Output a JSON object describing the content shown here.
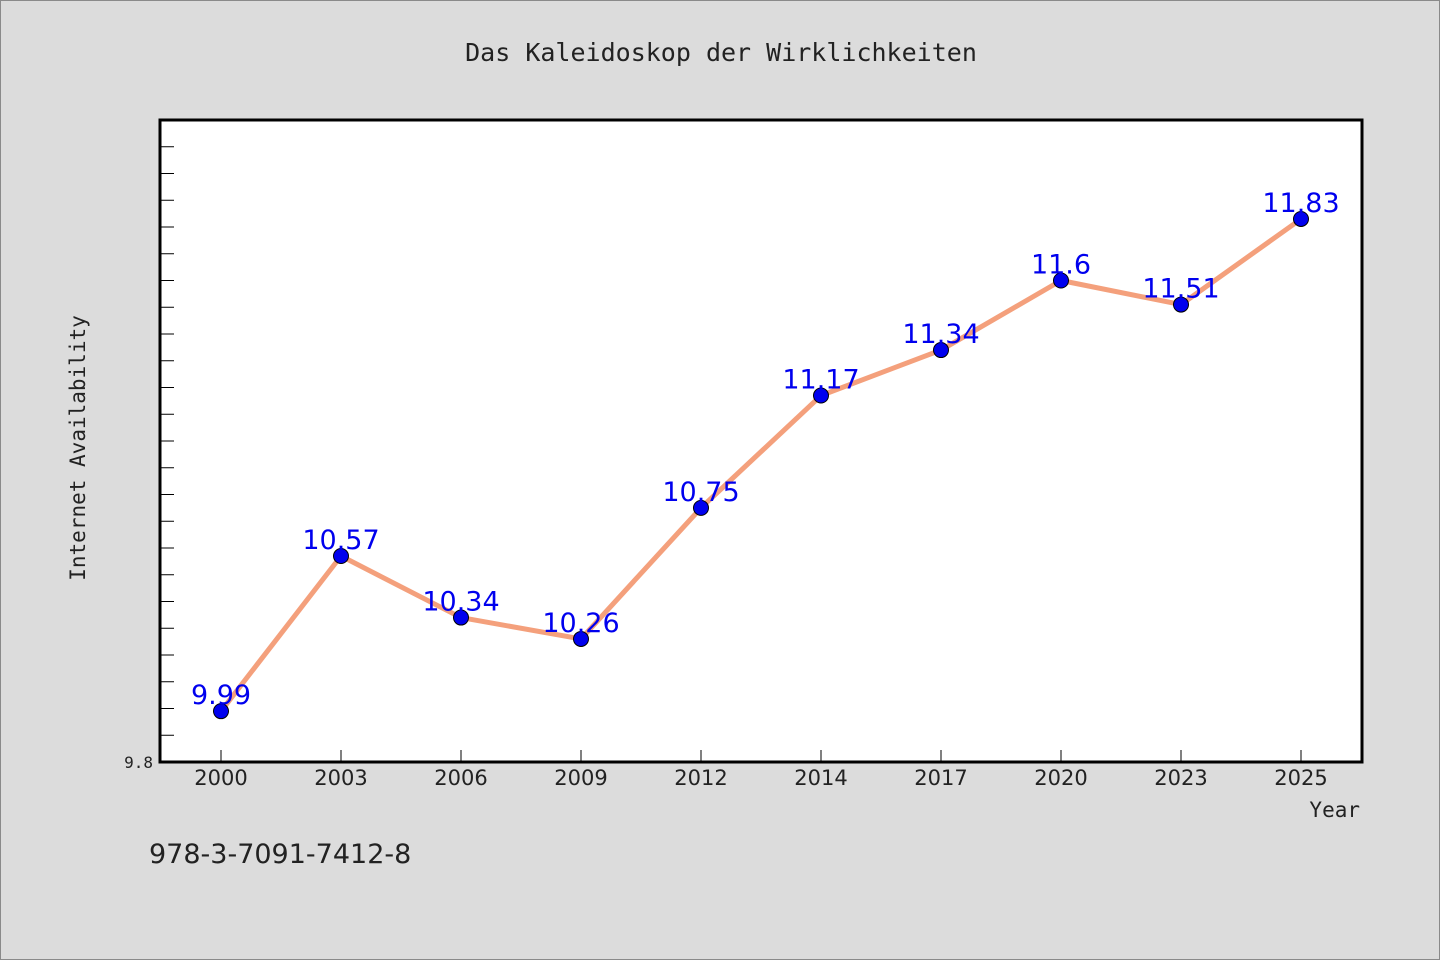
{
  "chart_data": {
    "type": "line",
    "title": "Das Kaleidoskop der Wirklichkeiten",
    "xlabel": "Year",
    "ylabel": "Internet Availability",
    "categories": [
      "2000",
      "2003",
      "2006",
      "2009",
      "2012",
      "2014",
      "2017",
      "2020",
      "2023",
      "2025"
    ],
    "series": [
      {
        "values": [
          9.99,
          10.57,
          10.34,
          10.26,
          10.75,
          11.17,
          11.34,
          11.6,
          11.51,
          11.83
        ],
        "data_labels": [
          "9.99",
          "10.57",
          "10.34",
          "10.26",
          "10.75",
          "11.17",
          "11.34",
          "11.6",
          "11.51",
          "11.83"
        ],
        "line_color": "#f4a07c",
        "marker_color": "#0000ee",
        "label_color": "#0000ee"
      }
    ],
    "y_tick_label": "9.8",
    "ylim": [
      9.8,
      12.2
    ],
    "y_minor_step": 0.1,
    "grid": false,
    "legend": "none"
  },
  "footer": {
    "isbn": "978-3-7091-7412-8"
  },
  "colors": {
    "background": "#dcdcdc",
    "plot_background": "#ffffff",
    "axes_border": "#000000",
    "text": "#222222"
  }
}
